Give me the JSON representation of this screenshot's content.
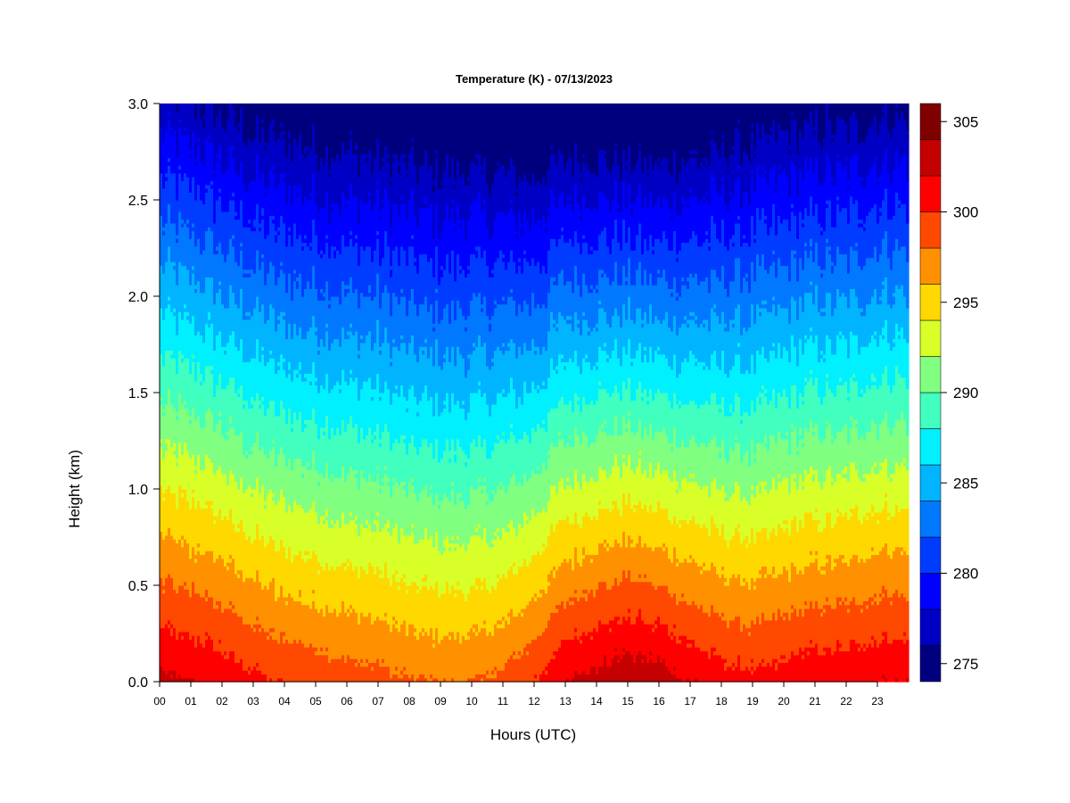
{
  "chart_data": {
    "type": "heatmap",
    "title": "Temperature (K) - 07/13/2023",
    "xlabel": "Hours (UTC)",
    "ylabel": "Height (km)",
    "x_ticks": [
      "00",
      "01",
      "02",
      "03",
      "04",
      "05",
      "06",
      "07",
      "08",
      "09",
      "10",
      "11",
      "12",
      "13",
      "14",
      "15",
      "16",
      "17",
      "18",
      "19",
      "20",
      "21",
      "22",
      "23"
    ],
    "xlim": [
      0,
      24
    ],
    "y_ticks": [
      "0.0",
      "0.5",
      "1.0",
      "1.5",
      "2.0",
      "2.5",
      "3.0"
    ],
    "ylim": [
      0,
      3.0
    ],
    "colorbar": {
      "levels": [
        274,
        276,
        278,
        280,
        282,
        284,
        286,
        288,
        290,
        292,
        294,
        296,
        298,
        300,
        302,
        304,
        306
      ],
      "colors": [
        "#00007f",
        "#0000c4",
        "#0000ff",
        "#003cff",
        "#0078ff",
        "#00b4ff",
        "#00f0ff",
        "#40ffbf",
        "#80ff80",
        "#d8ff28",
        "#ffd800",
        "#ff9000",
        "#ff4800",
        "#ff0000",
        "#c40000",
        "#800000"
      ],
      "tick_values": [
        275,
        280,
        285,
        290,
        295,
        300,
        305
      ],
      "tick_labels": [
        "275",
        "280",
        "285",
        "290",
        "295",
        "300",
        "305"
      ]
    },
    "time_hours": [
      0,
      1,
      2,
      3,
      4,
      5,
      6,
      7,
      8,
      9,
      10,
      11,
      12,
      13,
      14,
      15,
      16,
      17,
      18,
      19,
      20,
      21,
      22,
      23,
      24
    ],
    "surface_temperature_K": [
      302.5,
      302.0,
      301.5,
      300.5,
      299.8,
      299.5,
      299.0,
      298.8,
      298.2,
      298.0,
      298.0,
      298.5,
      300.0,
      302.0,
      302.8,
      303.5,
      303.0,
      302.0,
      301.0,
      300.5,
      301.0,
      301.5,
      301.5,
      302.0,
      302.0
    ],
    "lapse_rate_K_per_km": [
      8.6,
      8.6,
      8.7,
      8.6,
      8.5,
      8.5,
      8.4,
      8.4,
      8.3,
      8.3,
      8.3,
      8.5,
      9.2,
      9.6,
      9.9,
      10.2,
      10.1,
      9.6,
      9.1,
      8.8,
      8.8,
      8.9,
      8.9,
      8.9,
      8.9
    ]
  }
}
